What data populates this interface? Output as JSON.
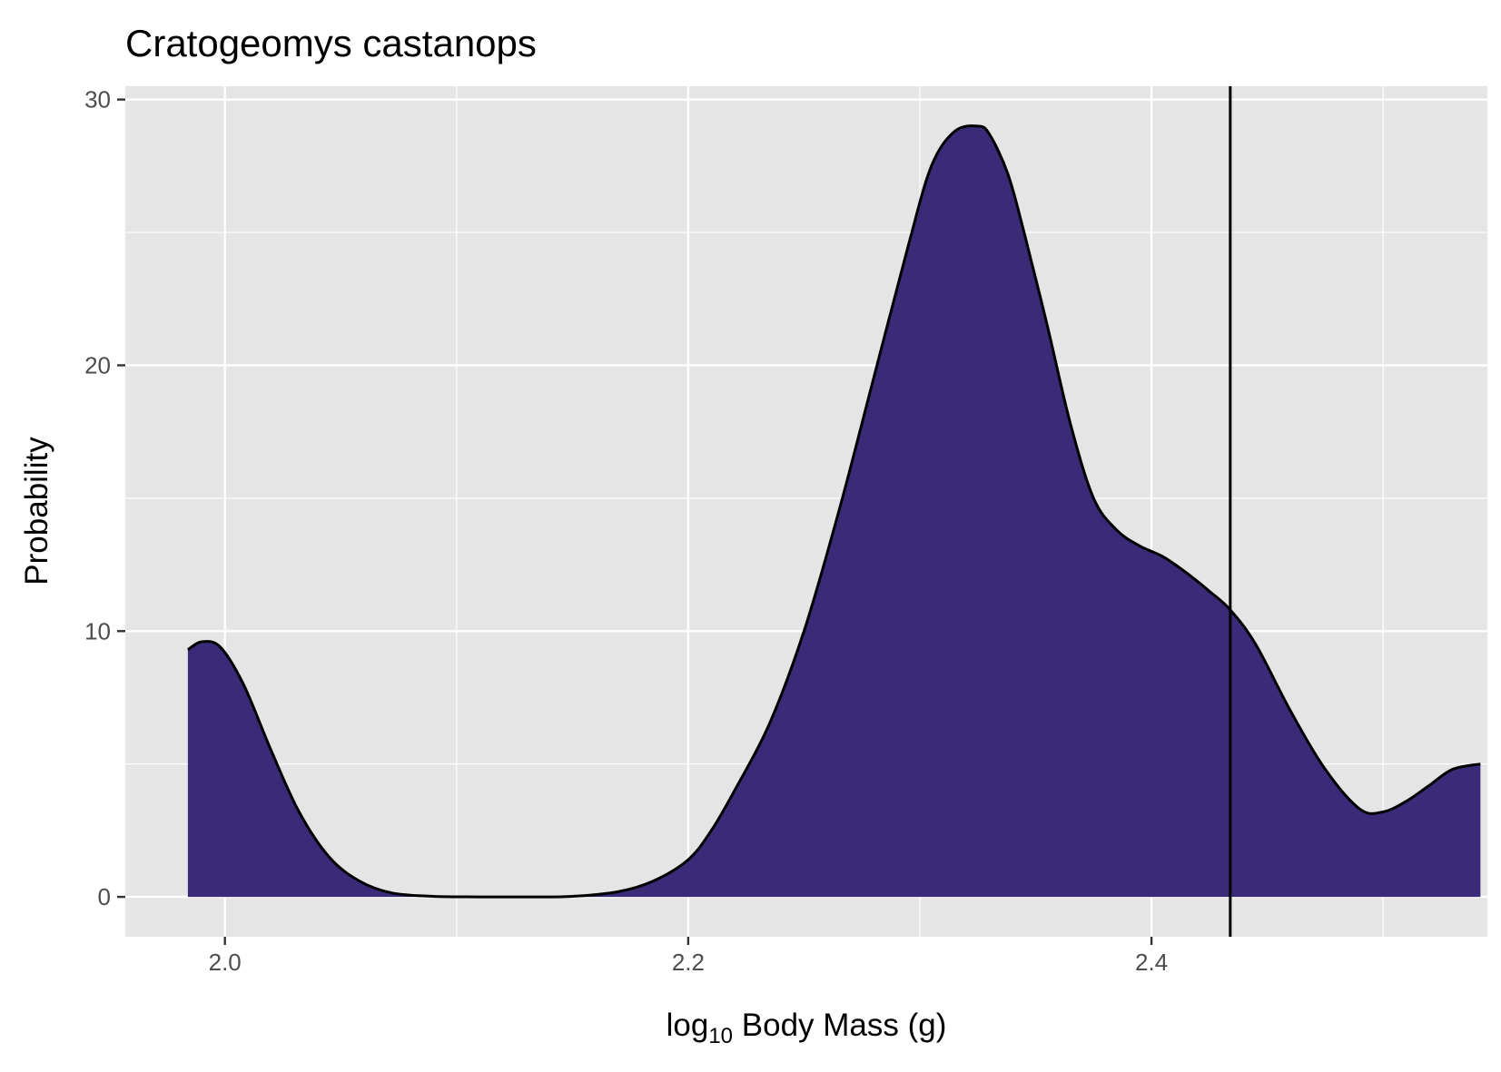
{
  "chart_data": {
    "type": "area",
    "title": "Cratogeomys castanops",
    "xlabel_parts": {
      "pre": "log",
      "sub": "10",
      "post": " Body Mass (g)"
    },
    "ylabel": "Probability",
    "xlim": [
      1.957,
      2.545
    ],
    "ylim": [
      -1.5,
      30.5
    ],
    "x_ticks": [
      2.0,
      2.2,
      2.4
    ],
    "x_tick_labels": [
      "2.0",
      "2.2",
      "2.4"
    ],
    "x_minor_ticks": [
      2.1,
      2.3,
      2.5
    ],
    "y_ticks": [
      0,
      10,
      20,
      30
    ],
    "y_tick_labels": [
      "0",
      "10",
      "20",
      "30"
    ],
    "y_minor_ticks": [
      5,
      15,
      25
    ],
    "vline_x": 2.434,
    "fill_color": "#3a2a78",
    "line_color": "#000000",
    "panel_color": "#e5e5e5",
    "grid_color": "#ffffff",
    "series": [
      {
        "name": "density",
        "x": [
          1.984,
          1.99,
          1.998,
          2.008,
          2.02,
          2.032,
          2.045,
          2.058,
          2.072,
          2.09,
          2.11,
          2.13,
          2.15,
          2.17,
          2.185,
          2.2,
          2.21,
          2.22,
          2.235,
          2.25,
          2.265,
          2.28,
          2.295,
          2.305,
          2.315,
          2.325,
          2.33,
          2.338,
          2.345,
          2.355,
          2.365,
          2.375,
          2.385,
          2.395,
          2.405,
          2.415,
          2.425,
          2.434,
          2.445,
          2.46,
          2.475,
          2.49,
          2.5,
          2.51,
          2.52,
          2.53,
          2.542
        ],
        "y": [
          9.3,
          9.6,
          9.4,
          8.0,
          5.5,
          3.2,
          1.5,
          0.6,
          0.15,
          0.02,
          0.0,
          0.0,
          0.02,
          0.2,
          0.6,
          1.4,
          2.5,
          4.0,
          6.5,
          10.0,
          14.5,
          19.5,
          24.5,
          27.5,
          28.8,
          29.0,
          28.7,
          27.2,
          25.0,
          21.5,
          17.8,
          15.0,
          13.8,
          13.2,
          12.8,
          12.2,
          11.5,
          10.8,
          9.5,
          7.0,
          4.8,
          3.3,
          3.2,
          3.6,
          4.2,
          4.8,
          5.0
        ]
      }
    ]
  }
}
